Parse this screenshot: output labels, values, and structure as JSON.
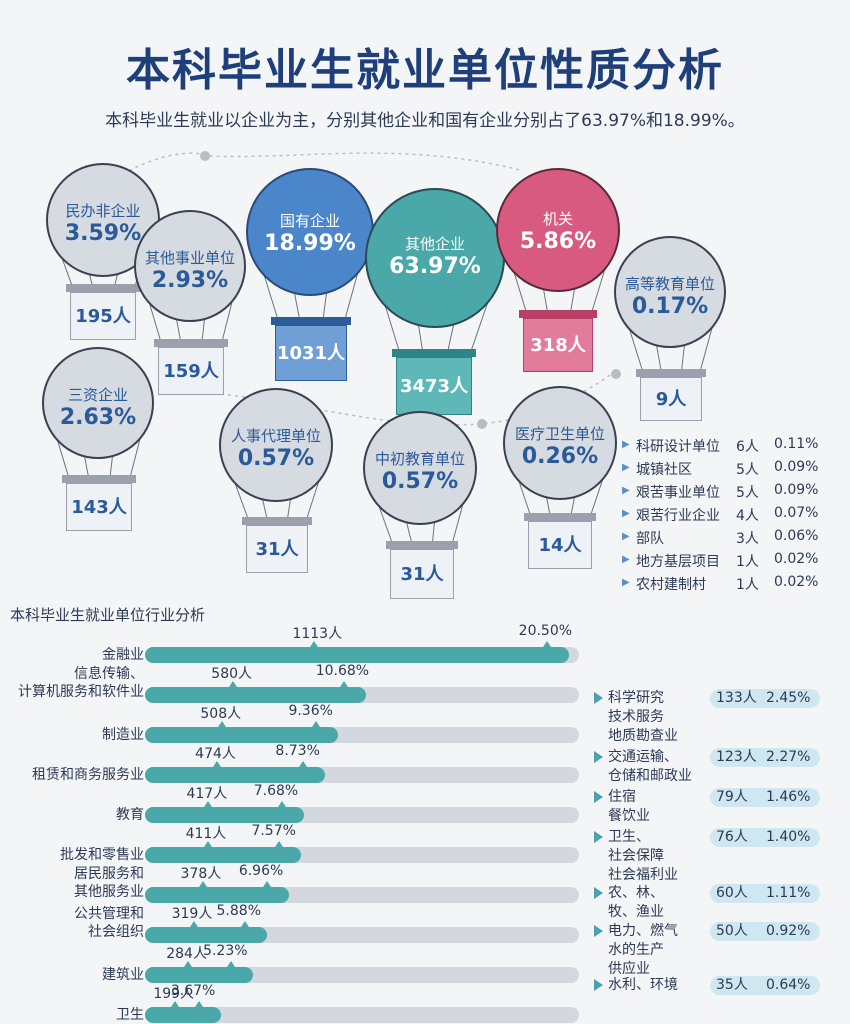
{
  "title": "本科毕业生就业单位性质分析",
  "subtitle": "本科毕业生就业以企业为主，分别其他企业和国有企业分别占了63.97%和18.99%。",
  "colors": {
    "dark_blue": "#1e3f7a",
    "teal": "#4aa8a8",
    "blue": "#4a86c9",
    "pink": "#d85a80",
    "gray_track": "#d3d7de"
  },
  "balloons": [
    {
      "name": "民办非企业",
      "percent": "3.59%",
      "count": "195人",
      "style": "gray"
    },
    {
      "name": "其他事业单位",
      "percent": "2.93%",
      "count": "159人",
      "style": "gray"
    },
    {
      "name": "国有企业",
      "percent": "18.99%",
      "count": "1031人",
      "style": "blue"
    },
    {
      "name": "其他企业",
      "percent": "63.97%",
      "count": "3473人",
      "style": "teal"
    },
    {
      "name": "机关",
      "percent": "5.86%",
      "count": "318人",
      "style": "pink"
    },
    {
      "name": "高等教育单位",
      "percent": "0.17%",
      "count": "9人",
      "style": "gray"
    },
    {
      "name": "三资企业",
      "percent": "2.63%",
      "count": "143人",
      "style": "gray"
    },
    {
      "name": "人事代理单位",
      "percent": "0.57%",
      "count": "31人",
      "style": "gray"
    },
    {
      "name": "中初教育单位",
      "percent": "0.57%",
      "count": "31人",
      "style": "gray"
    },
    {
      "name": "医疗卫生单位",
      "percent": "0.26%",
      "count": "14人",
      "style": "gray"
    }
  ],
  "small_units": [
    {
      "name": "科研设计单位",
      "count": "6人",
      "percent": "0.11%"
    },
    {
      "name": "城镇社区",
      "count": "5人",
      "percent": "0.09%"
    },
    {
      "name": "艰苦事业单位",
      "count": "5人",
      "percent": "0.09%"
    },
    {
      "name": "艰苦行业企业",
      "count": "4人",
      "percent": "0.07%"
    },
    {
      "name": "部队",
      "count": "3人",
      "percent": "0.06%"
    },
    {
      "name": "地方基层项目",
      "count": "1人",
      "percent": "0.02%"
    },
    {
      "name": "农村建制村",
      "count": "1人",
      "percent": "0.02%"
    }
  ],
  "industry_title": "本科毕业生就业单位行业分析",
  "chart_data": {
    "type": "bar",
    "title": "本科毕业生就业单位行业分析",
    "categories": [
      "金融业",
      "信息传输、\n计算机服务和软件业",
      "制造业",
      "租赁和商务服务业",
      "教育",
      "批发和零售业",
      "居民服务和\n其他服务业",
      "公共管理和\n社会组织",
      "建筑业",
      "卫生"
    ],
    "series": [
      {
        "values": [
          1113,
          580,
          508,
          474,
          417,
          411,
          378,
          319,
          284,
          199
        ]
      }
    ],
    "count_labels": [
      "1113人",
      "580人",
      "508人",
      "474人",
      "417人",
      "411人",
      "378人",
      "319人",
      "284人",
      "199人"
    ],
    "percent_labels": [
      "20.50%",
      "10.68%",
      "9.36%",
      "8.73%",
      "7.68%",
      "7.57%",
      "6.96%",
      "5.88%",
      "5.23%",
      "3.67%"
    ],
    "percents": [
      20.5,
      10.68,
      9.36,
      8.73,
      7.68,
      7.57,
      6.96,
      5.88,
      5.23,
      3.67
    ],
    "xlim": [
      0,
      21
    ],
    "side_items": [
      {
        "name": "科学研究\n技术服务\n地质勘查业",
        "count": "133人",
        "percent": "2.45%"
      },
      {
        "name": "交通运输、\n仓储和邮政业",
        "count": "123人",
        "percent": "2.27%"
      },
      {
        "name": "住宿\n餐饮业",
        "count": "79人",
        "percent": "1.46%"
      },
      {
        "name": "卫生、\n社会保障\n社会福利业",
        "count": "76人",
        "percent": "1.40%"
      },
      {
        "name": "农、林、\n牧、渔业",
        "count": "60人",
        "percent": "1.11%"
      },
      {
        "name": "电力、燃气\n水的生产\n供应业",
        "count": "50人",
        "percent": "0.92%"
      },
      {
        "name": "水利、环境",
        "count": "35人",
        "percent": "0.64%"
      }
    ]
  }
}
